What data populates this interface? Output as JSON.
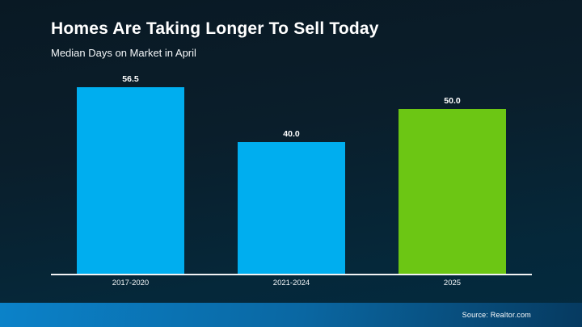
{
  "header": {
    "title": "Homes Are Taking Longer To Sell Today",
    "subtitle": "Median Days on Market in April"
  },
  "footer": {
    "source": "Source: Realtor.com"
  },
  "colors": {
    "bar_blue": "#00AEEF",
    "bar_green": "#6CC614",
    "axis": "#F2F3F4",
    "background_top": "#091924",
    "background_bottom": "#032A3F",
    "footer_left": "#0B82C9",
    "footer_right": "#063A60",
    "text": "#FFFFFF"
  },
  "chart_data": {
    "type": "bar",
    "title": "Homes Are Taking Longer To Sell Today",
    "subtitle": "Median Days on Market in April",
    "categories": [
      "2017-2020",
      "2021-2024",
      "2025"
    ],
    "values": [
      56.5,
      40.0,
      50.0
    ],
    "value_labels": [
      "56.5",
      "40.0",
      "50.0"
    ],
    "bar_colors": [
      "#00AEEF",
      "#00AEEF",
      "#6CC614"
    ],
    "ylim": [
      0,
      60
    ],
    "xlabel": "",
    "ylabel": "",
    "grid": false,
    "legend": false,
    "source": "Source: Realtor.com"
  }
}
